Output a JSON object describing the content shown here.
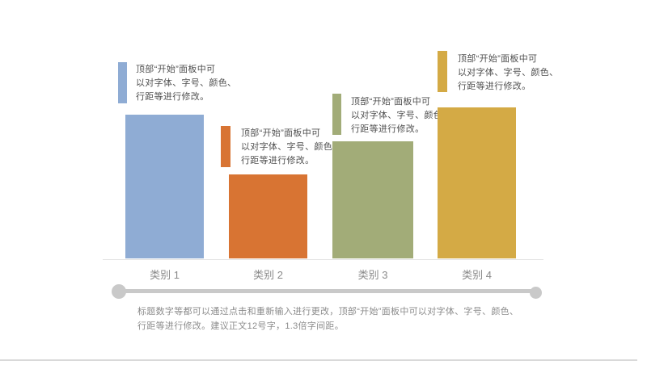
{
  "chart_data": {
    "type": "bar",
    "categories": [
      "类别 1",
      "类别 2",
      "类别 3",
      "类别 4"
    ],
    "values": [
      4.3,
      2.5,
      3.5,
      4.5
    ],
    "title": "",
    "xlabel": "",
    "ylabel": "",
    "ylim": [
      0,
      4.8
    ],
    "grid": false,
    "legend_position": "none",
    "bar_colors": [
      "#8FACD4",
      "#D87433",
      "#A2AC78",
      "#D4AA45"
    ],
    "axis_line_color": "#E3E3E3"
  },
  "annotations": [
    {
      "text": "顶部“开始”面板中可\n以对字体、字号、颜色、\n行距等进行修改。"
    },
    {
      "text": "顶部“开始”面板中可\n以对字体、字号、颜色、\n行距等进行修改。"
    },
    {
      "text": "顶部“开始”面板中可\n以对字体、字号、颜色、\n行距等进行修改。"
    },
    {
      "text": "顶部“开始”面板中可\n以对字体、字号、颜色、\n行距等进行修改。"
    }
  ],
  "footer": {
    "text": "标题数字等都可以通过点击和重新输入进行更改，顶部“开始”面板中可以对字体、字号、颜色、\n行距等进行修改。建议正文12号字，1.3倍字间距。"
  },
  "ui_colors": {
    "timeline": "#C9C9C9",
    "baseline": "#E3E3E3",
    "bottom_divider": "#D9D9D9",
    "note_text": "#4F4F4F",
    "category_label_text": "#8A8A8A",
    "footer_text": "#8C8C8C"
  }
}
